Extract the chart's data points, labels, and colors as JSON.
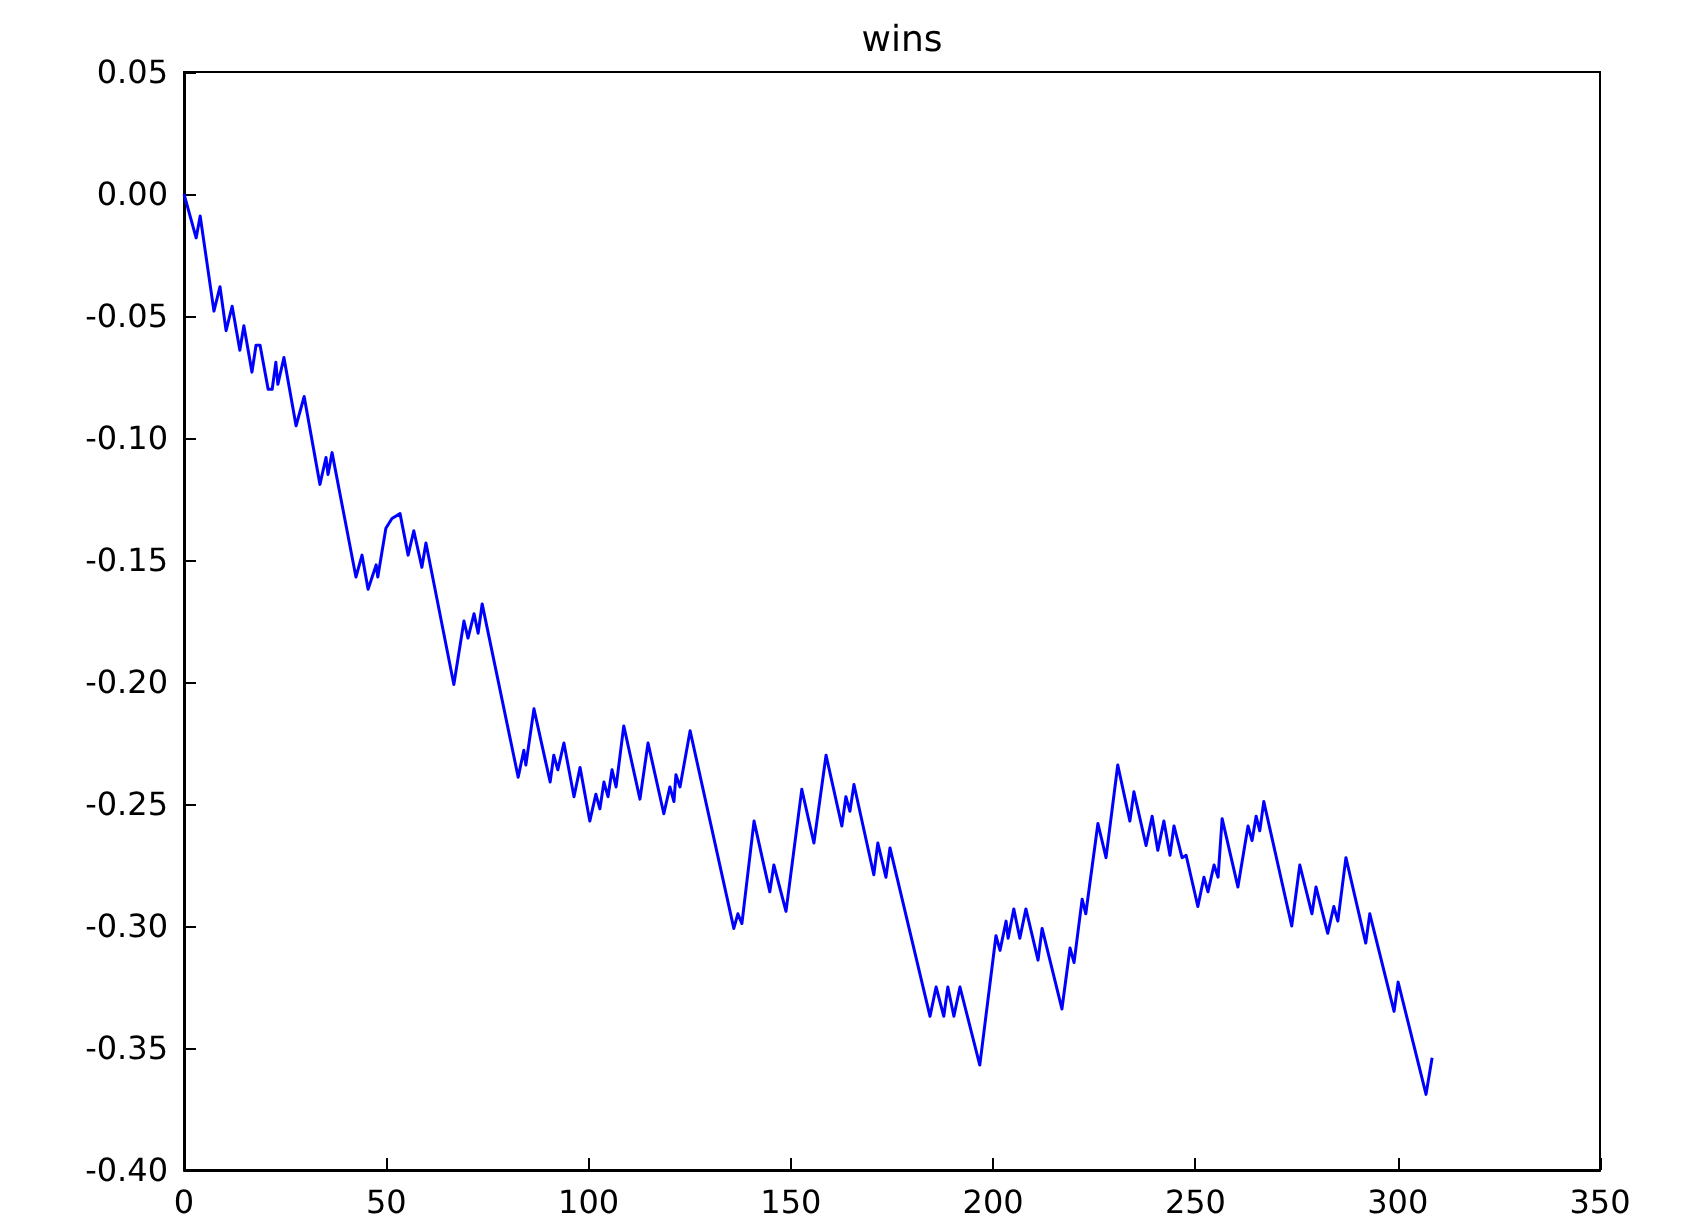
{
  "chart_data": {
    "type": "line",
    "title": "wins",
    "x": [
      0,
      3.0,
      4.0,
      7.4,
      8.9,
      10.4,
      11.9,
      13.8,
      14.8,
      16.8,
      17.8,
      18.8,
      20.8,
      21.8,
      22.7,
      23.2,
      24.7,
      27.7,
      29.7,
      33.6,
      35.1,
      35.6,
      36.6,
      42.5,
      44.0,
      45.5,
      47.5,
      47.9,
      49.9,
      51.4,
      53.4,
      55.4,
      56.8,
      58.8,
      59.8,
      66.7,
      69.2,
      70.2,
      71.7,
      72.7,
      73.7,
      82.6,
      84.0,
      84.5,
      86.5,
      90.5,
      91.4,
      92.4,
      93.9,
      96.4,
      97.9,
      100.3,
      101.8,
      102.8,
      103.8,
      104.8,
      105.8,
      106.8,
      108.7,
      112.7,
      114.7,
      118.6,
      120.1,
      121.1,
      121.6,
      122.6,
      125.1,
      135.9,
      136.9,
      137.9,
      140.9,
      144.8,
      145.8,
      148.8,
      152.7,
      155.7,
      158.7,
      162.6,
      163.6,
      164.6,
      165.6,
      170.5,
      171.5,
      173.5,
      174.5,
      184.4,
      185.9,
      187.8,
      188.8,
      190.3,
      191.8,
      196.7,
      200.7,
      201.7,
      203.2,
      203.7,
      205.1,
      206.6,
      208.1,
      211.1,
      212.1,
      217.0,
      219.0,
      220.0,
      222.0,
      222.9,
      225.9,
      227.9,
      230.8,
      233.8,
      234.8,
      237.8,
      239.3,
      240.7,
      242.2,
      243.7,
      244.7,
      246.7,
      247.7,
      250.6,
      252.1,
      253.1,
      254.6,
      255.6,
      256.6,
      260.5,
      263.0,
      264.0,
      265.0,
      265.9,
      266.9,
      273.8,
      275.8,
      278.8,
      279.8,
      282.7,
      284.2,
      285.2,
      287.2,
      292.1,
      293.1,
      299.1,
      300.1,
      307.0,
      308.5
    ],
    "series": [
      {
        "color": "#0000ff",
        "values": [
          0.0,
          -0.018,
          -0.009,
          -0.048,
          -0.038,
          -0.056,
          -0.046,
          -0.064,
          -0.054,
          -0.073,
          -0.062,
          -0.062,
          -0.08,
          -0.08,
          -0.069,
          -0.078,
          -0.067,
          -0.095,
          -0.083,
          -0.119,
          -0.108,
          -0.115,
          -0.106,
          -0.157,
          -0.148,
          -0.162,
          -0.152,
          -0.157,
          -0.137,
          -0.133,
          -0.131,
          -0.148,
          -0.138,
          -0.153,
          -0.143,
          -0.201,
          -0.175,
          -0.182,
          -0.172,
          -0.18,
          -0.168,
          -0.239,
          -0.228,
          -0.234,
          -0.211,
          -0.241,
          -0.23,
          -0.236,
          -0.225,
          -0.247,
          -0.235,
          -0.257,
          -0.246,
          -0.252,
          -0.241,
          -0.247,
          -0.236,
          -0.243,
          -0.218,
          -0.248,
          -0.225,
          -0.254,
          -0.243,
          -0.249,
          -0.238,
          -0.243,
          -0.22,
          -0.301,
          -0.295,
          -0.299,
          -0.257,
          -0.286,
          -0.275,
          -0.294,
          -0.244,
          -0.266,
          -0.23,
          -0.259,
          -0.247,
          -0.253,
          -0.242,
          -0.279,
          -0.266,
          -0.28,
          -0.268,
          -0.337,
          -0.325,
          -0.337,
          -0.325,
          -0.337,
          -0.325,
          -0.357,
          -0.304,
          -0.31,
          -0.298,
          -0.305,
          -0.293,
          -0.305,
          -0.293,
          -0.314,
          -0.301,
          -0.334,
          -0.309,
          -0.315,
          -0.289,
          -0.295,
          -0.258,
          -0.272,
          -0.234,
          -0.257,
          -0.245,
          -0.267,
          -0.255,
          -0.269,
          -0.257,
          -0.271,
          -0.259,
          -0.272,
          -0.271,
          -0.292,
          -0.28,
          -0.286,
          -0.275,
          -0.28,
          -0.256,
          -0.284,
          -0.259,
          -0.265,
          -0.255,
          -0.261,
          -0.249,
          -0.3,
          -0.275,
          -0.295,
          -0.284,
          -0.303,
          -0.292,
          -0.298,
          -0.272,
          -0.307,
          -0.295,
          -0.335,
          -0.323,
          -0.369,
          -0.354
        ]
      }
    ],
    "xlim": [
      0,
      350
    ],
    "xticks": [
      0,
      50,
      100,
      150,
      200,
      250,
      300,
      350
    ],
    "ylim": [
      -0.4,
      0.05
    ],
    "yticks": [
      {
        "value": -0.4,
        "label": "-0.40"
      },
      {
        "value": -0.35,
        "label": "-0.35"
      },
      {
        "value": -0.3,
        "label": "-0.30"
      },
      {
        "value": -0.25,
        "label": "-0.25"
      },
      {
        "value": -0.2,
        "label": "-0.20"
      },
      {
        "value": -0.15,
        "label": "-0.15"
      },
      {
        "value": -0.1,
        "label": "-0.10"
      },
      {
        "value": -0.05,
        "label": "-0.05"
      },
      {
        "value": 0,
        "label": "0.00"
      },
      {
        "value": 0.05,
        "label": "0.05"
      }
    ],
    "grid": false,
    "marker": "none",
    "line_style": "solid"
  }
}
